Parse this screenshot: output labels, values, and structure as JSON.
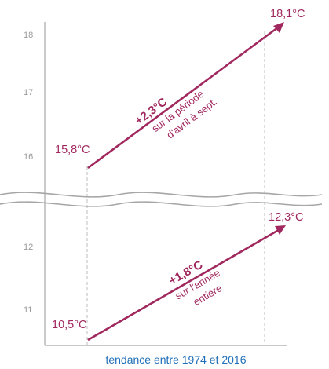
{
  "colors": {
    "accent": "#a0285e",
    "axis": "#a6a6a6",
    "grid_dash": "#bdbdbd",
    "tick_text": "#9a9a9a",
    "xlabel": "#1f6fb8"
  },
  "chart_data": {
    "type": "line",
    "xlabel": "tendance entre 1974 et 2016",
    "axis_break": true,
    "upper_panel": {
      "ylim": [
        15.5,
        18.3
      ],
      "yticks": [
        "16",
        "17",
        "18"
      ]
    },
    "lower_panel": {
      "ylim": [
        10.5,
        12.5
      ],
      "yticks": [
        "11",
        "12"
      ]
    },
    "series": [
      {
        "panel": "upper",
        "start_value": 15.8,
        "end_value": 18.1,
        "start_label": "15,8°C",
        "end_label": "18,1°C",
        "change_label": "+2,3°C",
        "annotation": [
          "sur la période",
          "d'avril à sept."
        ]
      },
      {
        "panel": "lower",
        "start_value": 10.5,
        "end_value": 12.3,
        "start_label": "10,5°C",
        "end_label": "12,3°C",
        "change_label": "+1,8°C",
        "annotation": [
          "sur l'année",
          "entière"
        ]
      }
    ]
  }
}
